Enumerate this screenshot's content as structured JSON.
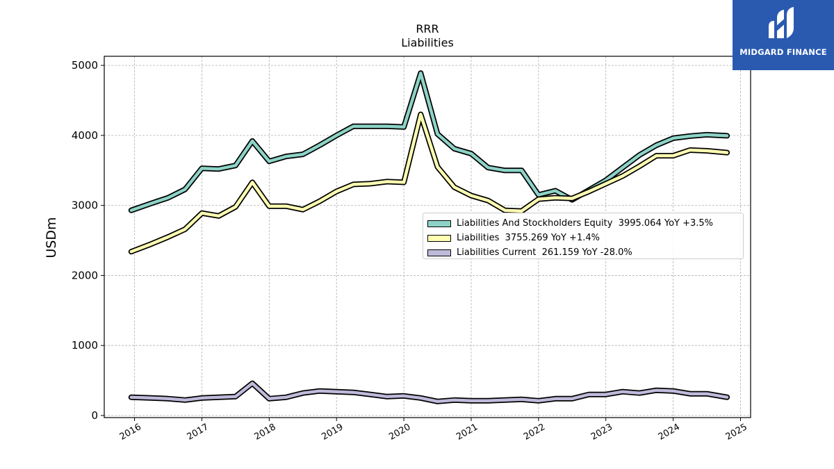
{
  "logo": {
    "name": "MIDGARD FINANCE",
    "color": "#2a5ab0"
  },
  "chart_data": {
    "type": "line",
    "title": "RRR",
    "subtitle": "Liabilities",
    "xlabel": "",
    "ylabel": "USDm",
    "xlim": [
      2015.55,
      2025.15
    ],
    "ylim": [
      -30,
      5130
    ],
    "yticks": [
      0,
      1000,
      2000,
      3000,
      4000,
      5000
    ],
    "xticks": [
      2016,
      2017,
      2018,
      2019,
      2020,
      2021,
      2022,
      2023,
      2024,
      2025
    ],
    "xtick_labels": [
      "2016",
      "2017",
      "2018",
      "2019",
      "2020",
      "2021",
      "2022",
      "2023",
      "2024",
      "2025"
    ],
    "grid": true,
    "legend_position": "center-right",
    "x": [
      2015.95,
      2016.25,
      2016.5,
      2016.75,
      2017.0,
      2017.25,
      2017.5,
      2017.75,
      2018.0,
      2018.25,
      2018.5,
      2018.75,
      2019.0,
      2019.25,
      2019.5,
      2019.75,
      2020.0,
      2020.25,
      2020.5,
      2020.75,
      2021.0,
      2021.25,
      2021.5,
      2021.75,
      2022.0,
      2022.25,
      2022.5,
      2022.75,
      2023.0,
      2023.25,
      2023.5,
      2023.75,
      2024.0,
      2024.25,
      2024.5,
      2024.8
    ],
    "series": [
      {
        "name": "Liabilities And Stockholders Equity",
        "legend": "Liabilities And Stockholders Equity  3995.064 YoY +3.5%",
        "color": "#8dd3c7",
        "values": [
          2930,
          3030,
          3110,
          3230,
          3530,
          3520,
          3570,
          3920,
          3630,
          3700,
          3730,
          3860,
          4000,
          4130,
          4130,
          4130,
          4120,
          4890,
          4020,
          3810,
          3740,
          3540,
          3500,
          3500,
          3150,
          3210,
          3080,
          3220,
          3360,
          3540,
          3720,
          3860,
          3960,
          3990,
          4010,
          3995
        ]
      },
      {
        "name": "Liabilities",
        "legend": "Liabilities  3755.269 YoY +1.4%",
        "color": "#ffffb3",
        "values": [
          2340,
          2450,
          2550,
          2660,
          2890,
          2850,
          2980,
          3330,
          2990,
          2990,
          2940,
          3060,
          3200,
          3300,
          3310,
          3340,
          3330,
          4300,
          3550,
          3260,
          3140,
          3070,
          2930,
          2920,
          3090,
          3110,
          3100,
          3200,
          3310,
          3420,
          3560,
          3710,
          3710,
          3790,
          3780,
          3755
        ]
      },
      {
        "name": "Liabilities Current",
        "legend": "Liabilities Current  261.159 YoY -28.0%",
        "color": "#bebada",
        "values": [
          260,
          250,
          240,
          220,
          250,
          260,
          270,
          460,
          240,
          260,
          320,
          350,
          340,
          330,
          300,
          270,
          280,
          250,
          200,
          220,
          210,
          210,
          220,
          230,
          210,
          240,
          240,
          300,
          300,
          340,
          320,
          360,
          350,
          310,
          310,
          261
        ]
      }
    ]
  }
}
